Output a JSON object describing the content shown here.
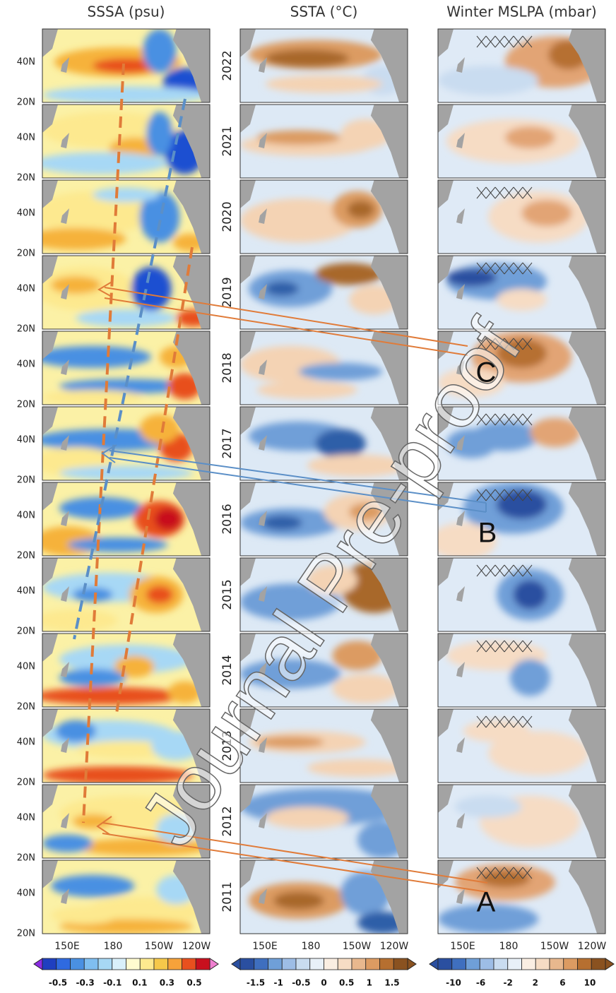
{
  "columns": [
    {
      "title": "SSSA (psu)",
      "lon_labels": [
        "150E",
        "180",
        "150W",
        "120W"
      ],
      "colorbar_labels": [
        "-0.5",
        "-0.3",
        "-0.1",
        "0.1",
        "0.3",
        "0.5"
      ]
    },
    {
      "title": "SSTA (°C)",
      "lon_labels": [
        "150E",
        "180",
        "150W",
        "120W"
      ],
      "colorbar_labels": [
        "-1.5",
        "-1",
        "-0.5",
        "0",
        "0.5",
        "1",
        "1.5"
      ]
    },
    {
      "title": "Winter MSLPA (mbar)",
      "lon_labels": [
        "150E",
        "180",
        "150W",
        "120W"
      ],
      "colorbar_labels": [
        "-10",
        "-6",
        "-2",
        "2",
        "6",
        "10"
      ]
    }
  ],
  "years": [
    "2022",
    "2021",
    "2020",
    "2019",
    "2018",
    "2017",
    "2016",
    "2015",
    "2014",
    "2013",
    "2012",
    "2011"
  ],
  "lat_labels": [
    "40N",
    "20N"
  ],
  "annotations": [
    "C",
    "B",
    "A"
  ],
  "watermark": "Journal Pre-proof"
}
